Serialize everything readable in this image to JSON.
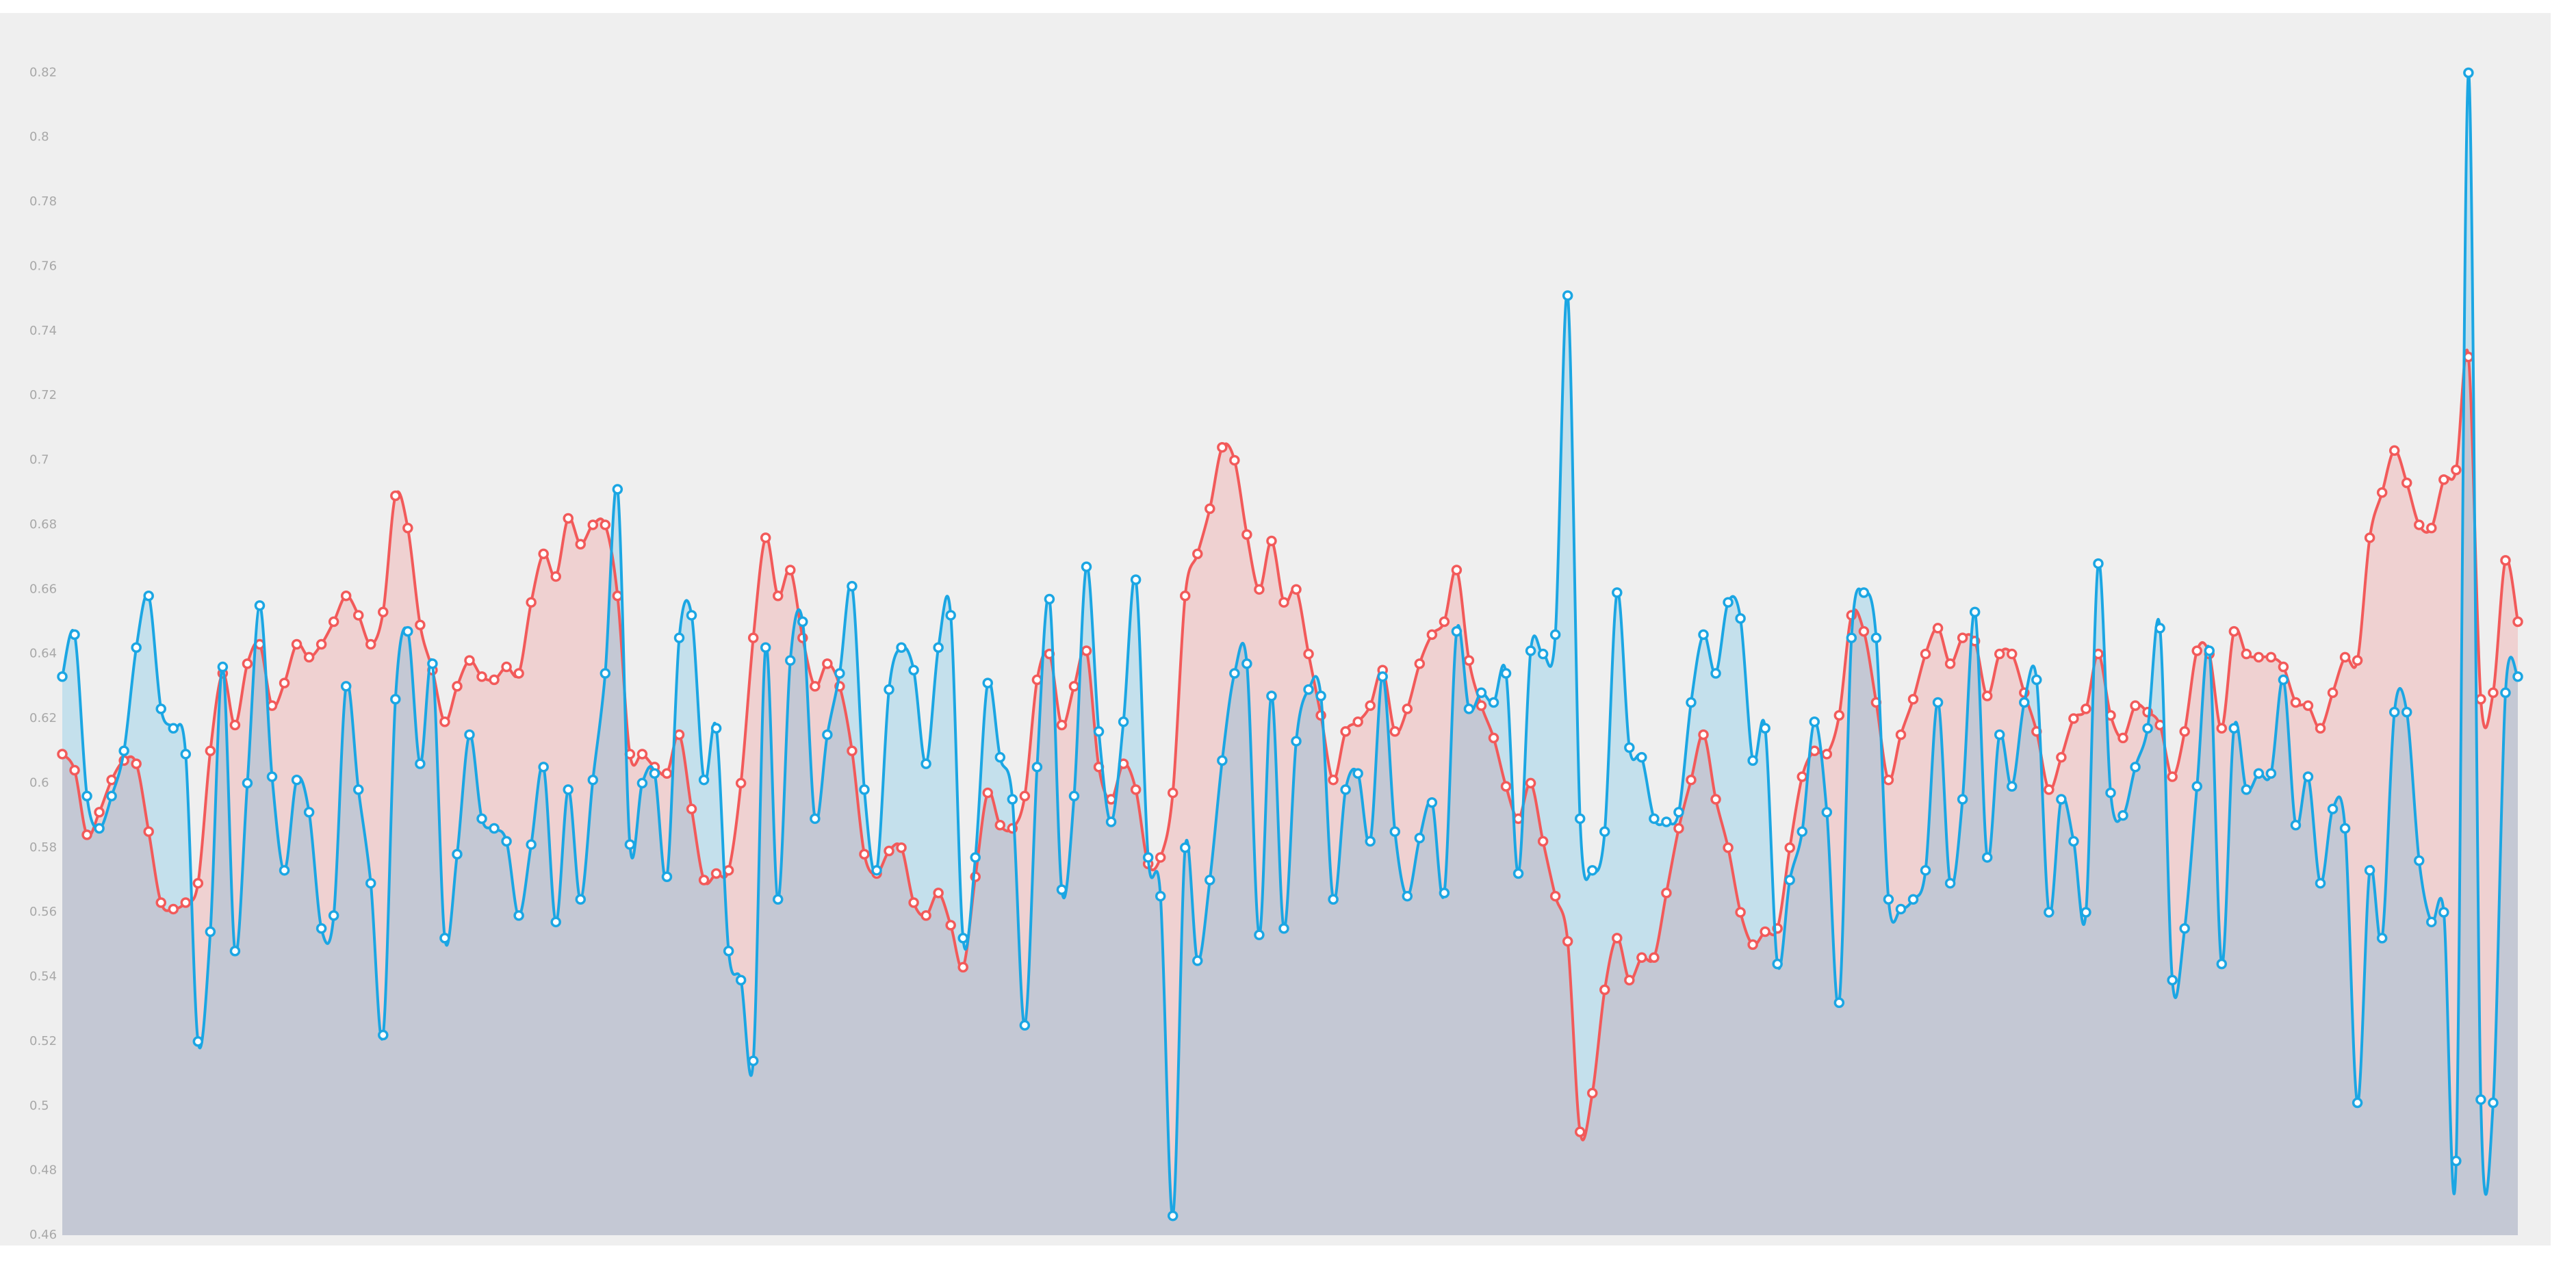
{
  "chart_data": {
    "type": "area",
    "ylim": [
      0.46,
      0.84
    ],
    "yticks": [
      0.46,
      0.48,
      0.5,
      0.52,
      0.54,
      0.56,
      0.58,
      0.6,
      0.62,
      0.64,
      0.66,
      0.68,
      0.7,
      0.72,
      0.74,
      0.76,
      0.78,
      0.8,
      0.82
    ],
    "grid": false,
    "series": [
      {
        "color": "#f25a5a",
        "values": [
          0.609,
          0.604,
          0.584,
          0.591,
          0.601,
          0.607,
          0.606,
          0.585,
          0.563,
          0.561,
          0.563,
          0.569,
          0.61,
          0.634,
          0.618,
          0.637,
          0.643,
          0.624,
          0.631,
          0.643,
          0.639,
          0.643,
          0.65,
          0.658,
          0.652,
          0.643,
          0.653,
          0.689,
          0.679,
          0.649,
          0.635,
          0.619,
          0.63,
          0.638,
          0.633,
          0.632,
          0.636,
          0.634,
          0.656,
          0.671,
          0.664,
          0.682,
          0.674,
          0.68,
          0.68,
          0.658,
          0.609,
          0.609,
          0.605,
          0.603,
          0.615,
          0.592,
          0.57,
          0.572,
          0.573,
          0.6,
          0.645,
          0.676,
          0.658,
          0.666,
          0.645,
          0.63,
          0.637,
          0.63,
          0.61,
          0.578,
          0.572,
          0.579,
          0.58,
          0.563,
          0.559,
          0.566,
          0.556,
          0.543,
          0.571,
          0.597,
          0.587,
          0.586,
          0.596,
          0.632,
          0.64,
          0.618,
          0.63,
          0.641,
          0.605,
          0.595,
          0.606,
          0.598,
          0.575,
          0.577,
          0.597,
          0.658,
          0.671,
          0.685,
          0.704,
          0.7,
          0.677,
          0.66,
          0.675,
          0.656,
          0.66,
          0.64,
          0.621,
          0.601,
          0.616,
          0.619,
          0.624,
          0.635,
          0.616,
          0.623,
          0.637,
          0.646,
          0.65,
          0.666,
          0.638,
          0.624,
          0.614,
          0.599,
          0.589,
          0.6,
          0.582,
          0.565,
          0.551,
          0.492,
          0.504,
          0.536,
          0.552,
          0.539,
          0.546,
          0.546,
          0.566,
          0.586,
          0.601,
          0.615,
          0.595,
          0.58,
          0.56,
          0.55,
          0.554,
          0.555,
          0.58,
          0.602,
          0.61,
          0.609,
          0.621,
          0.652,
          0.647,
          0.625,
          0.601,
          0.615,
          0.626,
          0.64,
          0.648,
          0.637,
          0.645,
          0.644,
          0.627,
          0.64,
          0.64,
          0.628,
          0.616,
          0.598,
          0.608,
          0.62,
          0.623,
          0.64,
          0.621,
          0.614,
          0.624,
          0.622,
          0.618,
          0.602,
          0.616,
          0.641,
          0.64,
          0.617,
          0.647,
          0.64,
          0.639,
          0.639,
          0.636,
          0.625,
          0.624,
          0.617,
          0.628,
          0.639,
          0.638,
          0.676,
          0.69,
          0.703,
          0.693,
          0.68,
          0.679,
          0.694,
          0.697,
          0.732,
          0.626,
          0.628,
          0.669,
          0.65
        ]
      },
      {
        "color": "#1ba6e3",
        "values": [
          0.633,
          0.646,
          0.596,
          0.586,
          0.596,
          0.61,
          0.642,
          0.658,
          0.623,
          0.617,
          0.609,
          0.52,
          0.554,
          0.636,
          0.548,
          0.6,
          0.655,
          0.602,
          0.573,
          0.601,
          0.591,
          0.555,
          0.559,
          0.63,
          0.598,
          0.569,
          0.522,
          0.626,
          0.647,
          0.606,
          0.637,
          0.552,
          0.578,
          0.615,
          0.589,
          0.586,
          0.582,
          0.559,
          0.581,
          0.605,
          0.557,
          0.598,
          0.564,
          0.601,
          0.634,
          0.691,
          0.581,
          0.6,
          0.603,
          0.571,
          0.645,
          0.652,
          0.601,
          0.617,
          0.548,
          0.539,
          0.514,
          0.642,
          0.564,
          0.638,
          0.65,
          0.589,
          0.615,
          0.634,
          0.661,
          0.598,
          0.573,
          0.629,
          0.642,
          0.635,
          0.606,
          0.642,
          0.652,
          0.552,
          0.577,
          0.631,
          0.608,
          0.595,
          0.525,
          0.605,
          0.657,
          0.567,
          0.596,
          0.667,
          0.616,
          0.588,
          0.619,
          0.663,
          0.577,
          0.565,
          0.466,
          0.58,
          0.545,
          0.57,
          0.607,
          0.634,
          0.637,
          0.553,
          0.627,
          0.555,
          0.613,
          0.629,
          0.627,
          0.564,
          0.598,
          0.603,
          0.582,
          0.633,
          0.585,
          0.565,
          0.583,
          0.594,
          0.566,
          0.647,
          0.623,
          0.628,
          0.625,
          0.634,
          0.572,
          0.641,
          0.64,
          0.646,
          0.751,
          0.589,
          0.573,
          0.585,
          0.659,
          0.611,
          0.608,
          0.589,
          0.588,
          0.591,
          0.625,
          0.646,
          0.634,
          0.656,
          0.651,
          0.607,
          0.617,
          0.544,
          0.57,
          0.585,
          0.619,
          0.591,
          0.532,
          0.645,
          0.659,
          0.645,
          0.564,
          0.561,
          0.564,
          0.573,
          0.625,
          0.569,
          0.595,
          0.653,
          0.577,
          0.615,
          0.599,
          0.625,
          0.632,
          0.56,
          0.595,
          0.582,
          0.56,
          0.668,
          0.597,
          0.59,
          0.605,
          0.617,
          0.648,
          0.539,
          0.555,
          0.599,
          0.641,
          0.544,
          0.617,
          0.598,
          0.603,
          0.603,
          0.632,
          0.587,
          0.602,
          0.569,
          0.592,
          0.586,
          0.501,
          0.573,
          0.552,
          0.622,
          0.622,
          0.576,
          0.557,
          0.56,
          0.483,
          0.82,
          0.502,
          0.501,
          0.628,
          0.633
        ]
      }
    ]
  }
}
